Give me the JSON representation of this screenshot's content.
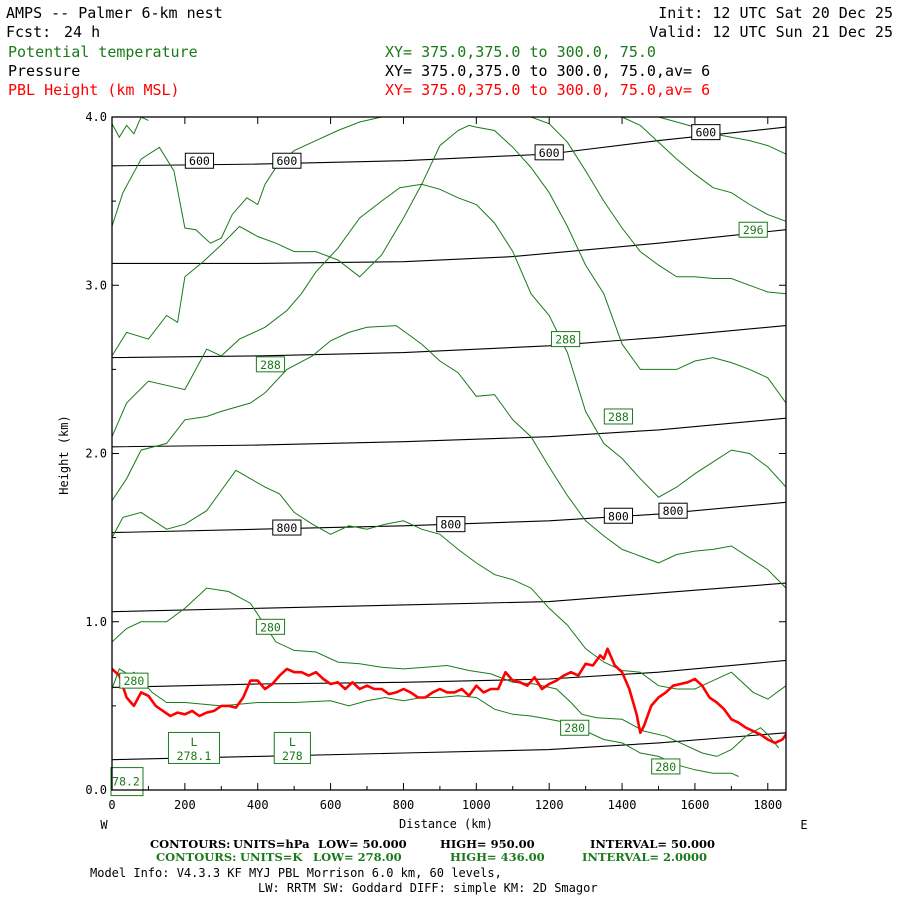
{
  "header": {
    "title": "AMPS -- Palmer 6-km nest",
    "fcst_label": "Fcst:",
    "fcst_value": "24 h",
    "init": "Init: 12 UTC Sat 20 Dec 25",
    "valid": "Valid: 12 UTC Sun 21 Dec 25",
    "fields": [
      {
        "name": "Potential temperature",
        "xy": "XY= 375.0,375.0 to 300.0, 75.0",
        "color": "#1a7a1a"
      },
      {
        "name": "Pressure",
        "xy": "XY= 375.0,375.0 to 300.0, 75.0,av=  6",
        "color": "#000000"
      },
      {
        "name": "PBL Height (km MSL)",
        "xy": "XY= 375.0,375.0 to 300.0, 75.0,av=  6",
        "color": "#ff0000"
      }
    ]
  },
  "chart_data": {
    "type": "line",
    "xlabel": "Distance (km)",
    "ylabel": "Height (km)",
    "xlim": [
      0,
      1850
    ],
    "ylim": [
      0,
      4.0
    ],
    "x_ticks": [
      0,
      200,
      400,
      600,
      800,
      1000,
      1200,
      1400,
      1600,
      1800
    ],
    "x_tick_labels": [
      "0",
      "200",
      "400",
      "600",
      "800",
      "1000",
      "1200",
      "1400",
      "1600",
      "1800"
    ],
    "y_ticks": [
      0,
      1.0,
      2.0,
      3.0,
      4.0
    ],
    "y_tick_labels": [
      "0.0",
      "1.0",
      "2.0",
      "3.0",
      "4.0"
    ],
    "west_label": "W",
    "east_label": "E",
    "colors": {
      "theta": "#1a7a1a",
      "pressure": "#000000",
      "pbl": "#ff0000"
    },
    "pressure_contours": [
      {
        "level": 950,
        "x": [
          0,
          400,
          800,
          1200,
          1500,
          1850
        ],
        "y": [
          0.18,
          0.2,
          0.22,
          0.24,
          0.28,
          0.34
        ]
      },
      {
        "level": 900,
        "x": [
          0,
          400,
          800,
          1200,
          1500,
          1850
        ],
        "y": [
          0.61,
          0.63,
          0.64,
          0.66,
          0.7,
          0.77
        ]
      },
      {
        "level": 850,
        "x": [
          0,
          400,
          800,
          1200,
          1500,
          1850
        ],
        "y": [
          1.06,
          1.08,
          1.1,
          1.12,
          1.17,
          1.23
        ]
      },
      {
        "level": 800,
        "x": [
          0,
          400,
          800,
          1200,
          1500,
          1850
        ],
        "y": [
          1.53,
          1.55,
          1.57,
          1.6,
          1.64,
          1.71
        ]
      },
      {
        "level": 750,
        "x": [
          0,
          400,
          800,
          1200,
          1500,
          1850
        ],
        "y": [
          2.04,
          2.05,
          2.07,
          2.1,
          2.14,
          2.21
        ]
      },
      {
        "level": 700,
        "x": [
          0,
          400,
          800,
          1200,
          1500,
          1850
        ],
        "y": [
          2.57,
          2.58,
          2.6,
          2.64,
          2.69,
          2.76
        ]
      },
      {
        "level": 650,
        "x": [
          0,
          400,
          800,
          1100,
          1500,
          1850
        ],
        "y": [
          3.13,
          3.13,
          3.14,
          3.17,
          3.25,
          3.33
        ]
      },
      {
        "level": 600,
        "x": [
          0,
          400,
          800,
          1200,
          1500,
          1850
        ],
        "y": [
          3.71,
          3.72,
          3.74,
          3.78,
          3.86,
          3.94
        ]
      }
    ],
    "pressure_labels": [
      {
        "text": "600",
        "x": 240,
        "y": 3.74
      },
      {
        "text": "600",
        "x": 480,
        "y": 3.74
      },
      {
        "text": "600",
        "x": 1200,
        "y": 3.79
      },
      {
        "text": "600",
        "x": 1630,
        "y": 3.91
      },
      {
        "text": "800",
        "x": 480,
        "y": 1.56
      },
      {
        "text": "800",
        "x": 930,
        "y": 1.58
      },
      {
        "text": "800",
        "x": 1390,
        "y": 1.63
      },
      {
        "text": "800",
        "x": 1540,
        "y": 1.66
      }
    ],
    "theta_contours": [
      {
        "x": [
          0,
          20,
          50,
          60,
          90,
          110,
          150,
          200,
          300,
          400,
          500,
          600,
          650,
          700,
          750,
          800,
          850,
          900,
          950,
          1000,
          1050,
          1100,
          1150,
          1200,
          1250,
          1300,
          1320,
          1350,
          1400,
          1450,
          1500,
          1550,
          1600,
          1650,
          1700,
          1720
        ],
        "y": [
          0.6,
          0.72,
          0.68,
          0.7,
          0.63,
          0.58,
          0.52,
          0.52,
          0.5,
          0.52,
          0.52,
          0.53,
          0.5,
          0.53,
          0.55,
          0.53,
          0.55,
          0.55,
          0.56,
          0.55,
          0.48,
          0.45,
          0.44,
          0.42,
          0.4,
          0.35,
          0.33,
          0.3,
          0.28,
          0.22,
          0.2,
          0.15,
          0.12,
          0.1,
          0.1,
          0.08
        ]
      },
      {
        "x": [
          0,
          40,
          80,
          150,
          200,
          260,
          320,
          380,
          450,
          500,
          560,
          620,
          680,
          740,
          800,
          860,
          920,
          980,
          1040,
          1100,
          1160,
          1220,
          1260,
          1290,
          1330,
          1400,
          1460,
          1520,
          1560,
          1620,
          1660,
          1700,
          1740,
          1780,
          1800,
          1830
        ],
        "y": [
          0.88,
          0.96,
          1.0,
          1.0,
          1.08,
          1.2,
          1.18,
          1.11,
          0.88,
          0.83,
          0.82,
          0.76,
          0.75,
          0.73,
          0.72,
          0.73,
          0.74,
          0.71,
          0.69,
          0.64,
          0.63,
          0.6,
          0.52,
          0.45,
          0.43,
          0.42,
          0.35,
          0.32,
          0.28,
          0.22,
          0.2,
          0.24,
          0.32,
          0.37,
          0.33,
          0.25
        ]
      },
      {
        "x": [
          0,
          30,
          80,
          150,
          200,
          260,
          300,
          340,
          380,
          420,
          460,
          500,
          550,
          600,
          650,
          700,
          750,
          800,
          850,
          900,
          950,
          1000,
          1050,
          1100,
          1150,
          1200,
          1250,
          1300,
          1350,
          1400,
          1450,
          1500,
          1550,
          1600,
          1650,
          1700,
          1760,
          1800,
          1850
        ],
        "y": [
          1.5,
          1.62,
          1.65,
          1.55,
          1.58,
          1.66,
          1.78,
          1.9,
          1.85,
          1.8,
          1.76,
          1.65,
          1.58,
          1.52,
          1.57,
          1.55,
          1.58,
          1.6,
          1.55,
          1.52,
          1.43,
          1.35,
          1.28,
          1.25,
          1.2,
          1.08,
          0.98,
          0.84,
          0.76,
          0.71,
          0.7,
          0.62,
          0.6,
          0.6,
          0.65,
          0.7,
          0.58,
          0.54,
          0.62
        ]
      },
      {
        "x": [
          0,
          40,
          80,
          150,
          200,
          260,
          300,
          380,
          420,
          480,
          550,
          600,
          650,
          700,
          780,
          850,
          900,
          950,
          1000,
          1050,
          1100,
          1150,
          1200,
          1250,
          1300,
          1350,
          1400,
          1450,
          1500,
          1550,
          1600,
          1650,
          1700,
          1750,
          1800,
          1850
        ],
        "y": [
          1.72,
          1.85,
          2.02,
          2.06,
          2.2,
          2.22,
          2.25,
          2.3,
          2.36,
          2.5,
          2.58,
          2.67,
          2.72,
          2.75,
          2.76,
          2.65,
          2.55,
          2.48,
          2.34,
          2.35,
          2.2,
          2.1,
          1.92,
          1.75,
          1.6,
          1.51,
          1.43,
          1.39,
          1.35,
          1.4,
          1.42,
          1.43,
          1.45,
          1.38,
          1.31,
          1.2
        ]
      },
      {
        "x": [
          0,
          40,
          100,
          200,
          260,
          300,
          350,
          420,
          480,
          520,
          560,
          620,
          680,
          740,
          790,
          850,
          900,
          950,
          1000,
          1050,
          1100,
          1150,
          1200,
          1250,
          1300,
          1350,
          1400,
          1450,
          1500,
          1550,
          1600,
          1650,
          1700,
          1750,
          1800,
          1850
        ],
        "y": [
          2.1,
          2.3,
          2.43,
          2.38,
          2.62,
          2.58,
          2.68,
          2.75,
          2.85,
          2.95,
          3.08,
          3.22,
          3.4,
          3.5,
          3.58,
          3.6,
          3.57,
          3.52,
          3.48,
          3.37,
          3.2,
          2.95,
          2.82,
          2.6,
          2.25,
          2.06,
          1.97,
          1.85,
          1.74,
          1.8,
          1.88,
          1.95,
          2.02,
          2.0,
          1.92,
          1.8
        ]
      },
      {
        "x": [
          0,
          40,
          100,
          150,
          180,
          200,
          250,
          300,
          350,
          400,
          450,
          500,
          560,
          620,
          680,
          740,
          800,
          850,
          900,
          950,
          980,
          1000,
          1050,
          1100,
          1150,
          1200,
          1250,
          1300,
          1350,
          1400,
          1450,
          1500,
          1550,
          1600,
          1650,
          1700,
          1750,
          1800,
          1850
        ],
        "y": [
          2.58,
          2.72,
          2.68,
          2.82,
          2.78,
          3.05,
          3.14,
          3.24,
          3.35,
          3.29,
          3.25,
          3.2,
          3.2,
          3.15,
          3.05,
          3.18,
          3.4,
          3.6,
          3.83,
          3.92,
          3.95,
          3.94,
          3.92,
          3.82,
          3.7,
          3.55,
          3.35,
          3.12,
          2.95,
          2.65,
          2.5,
          2.5,
          2.5,
          2.55,
          2.57,
          2.54,
          2.5,
          2.45,
          2.3
        ]
      },
      {
        "x": [
          0,
          30,
          80,
          130,
          170,
          200,
          230,
          270,
          300,
          330,
          370,
          400,
          420,
          450,
          500,
          560,
          620,
          680,
          740,
          780,
          800
        ],
        "y": [
          3.35,
          3.55,
          3.75,
          3.82,
          3.68,
          3.34,
          3.33,
          3.25,
          3.28,
          3.42,
          3.52,
          3.48,
          3.6,
          3.7,
          3.8,
          3.86,
          3.92,
          3.97,
          4.0,
          4.0,
          4.0
        ]
      },
      {
        "x": [
          1150,
          1200,
          1250,
          1300,
          1350,
          1400,
          1450,
          1500,
          1550,
          1600,
          1650,
          1700,
          1750,
          1800,
          1850
        ],
        "y": [
          4.0,
          3.96,
          3.85,
          3.68,
          3.5,
          3.34,
          3.2,
          3.12,
          3.05,
          3.05,
          3.04,
          3.04,
          3.0,
          2.96,
          2.95
        ]
      },
      {
        "x": [
          1400,
          1450,
          1500,
          1550,
          1600,
          1650,
          1700,
          1750,
          1800,
          1850
        ],
        "y": [
          4.0,
          3.95,
          3.85,
          3.75,
          3.66,
          3.58,
          3.55,
          3.48,
          3.42,
          3.38
        ]
      },
      {
        "x": [
          1500,
          1550,
          1600,
          1650,
          1700,
          1750,
          1800,
          1850
        ],
        "y": [
          4.0,
          3.97,
          3.94,
          3.9,
          3.88,
          3.86,
          3.83,
          3.78
        ]
      },
      {
        "x": [
          0,
          20,
          40,
          60,
          80,
          100
        ],
        "y": [
          3.96,
          3.88,
          3.95,
          3.9,
          4.0,
          3.98
        ]
      }
    ],
    "theta_labels": [
      {
        "text": "280",
        "x": 435,
        "y": 0.97
      },
      {
        "text": "280",
        "x": 60,
        "y": 0.65
      },
      {
        "text": "280",
        "x": 1270,
        "y": 0.37
      },
      {
        "text": "280",
        "x": 1520,
        "y": 0.14
      },
      {
        "text": "288",
        "x": 435,
        "y": 2.53
      },
      {
        "text": "288",
        "x": 1245,
        "y": 2.68
      },
      {
        "text": "288",
        "x": 1390,
        "y": 2.22
      },
      {
        "text": "296",
        "x": 1760,
        "y": 3.33
      }
    ],
    "lows": [
      {
        "letter": "L",
        "value": "278.1",
        "x": 225,
        "y": 0.25
      },
      {
        "letter": "L",
        "value": "278",
        "x": 495,
        "y": 0.25
      },
      {
        "letter": "",
        "value": "78.2",
        "x": 40,
        "y": 0.05
      }
    ],
    "pbl": {
      "x": [
        0,
        20,
        40,
        60,
        80,
        100,
        120,
        140,
        160,
        180,
        200,
        220,
        240,
        260,
        280,
        300,
        320,
        340,
        360,
        380,
        400,
        420,
        440,
        460,
        480,
        500,
        520,
        540,
        560,
        580,
        600,
        620,
        640,
        660,
        680,
        700,
        720,
        740,
        760,
        780,
        800,
        820,
        840,
        860,
        880,
        900,
        920,
        940,
        960,
        980,
        1000,
        1020,
        1040,
        1060,
        1080,
        1100,
        1120,
        1140,
        1160,
        1180,
        1200,
        1220,
        1240,
        1260,
        1280,
        1300,
        1320,
        1340,
        1350,
        1360,
        1380,
        1400,
        1420,
        1440,
        1450,
        1460,
        1480,
        1500,
        1520,
        1540,
        1560,
        1580,
        1600,
        1620,
        1640,
        1660,
        1680,
        1700,
        1720,
        1740,
        1760,
        1780,
        1800,
        1820,
        1840,
        1850
      ],
      "y": [
        0.72,
        0.68,
        0.55,
        0.5,
        0.58,
        0.56,
        0.5,
        0.47,
        0.44,
        0.46,
        0.45,
        0.47,
        0.44,
        0.46,
        0.47,
        0.5,
        0.5,
        0.49,
        0.55,
        0.65,
        0.65,
        0.6,
        0.63,
        0.68,
        0.72,
        0.7,
        0.7,
        0.68,
        0.7,
        0.66,
        0.63,
        0.64,
        0.6,
        0.64,
        0.6,
        0.62,
        0.6,
        0.6,
        0.57,
        0.58,
        0.6,
        0.58,
        0.55,
        0.55,
        0.58,
        0.6,
        0.58,
        0.58,
        0.6,
        0.56,
        0.62,
        0.58,
        0.6,
        0.6,
        0.7,
        0.65,
        0.64,
        0.62,
        0.67,
        0.6,
        0.63,
        0.65,
        0.68,
        0.7,
        0.68,
        0.75,
        0.74,
        0.8,
        0.78,
        0.84,
        0.74,
        0.7,
        0.6,
        0.45,
        0.34,
        0.38,
        0.5,
        0.55,
        0.58,
        0.62,
        0.63,
        0.64,
        0.66,
        0.62,
        0.55,
        0.52,
        0.48,
        0.42,
        0.4,
        0.37,
        0.35,
        0.33,
        0.3,
        0.28,
        0.3,
        0.33
      ]
    }
  },
  "footer": {
    "pressure_line": {
      "contours": "CONTOURS:",
      "units": "UNITS=hPa",
      "low": "LOW=  50.000",
      "high": "HIGH=  950.00",
      "interval": "INTERVAL=  50.000"
    },
    "theta_line": {
      "contours": "CONTOURS:",
      "units": "UNITS=K",
      "low": "LOW=  278.00",
      "high": "HIGH=  436.00",
      "interval": "INTERVAL=  2.0000"
    },
    "model_info": "Model Info: V4.3.3   KF      MYJ PBL  Morrison          6.0 km,  60 levels,",
    "physics_info": "LW: RRTM SW: Goddard DIFF: simple KM: 2D Smagor"
  }
}
